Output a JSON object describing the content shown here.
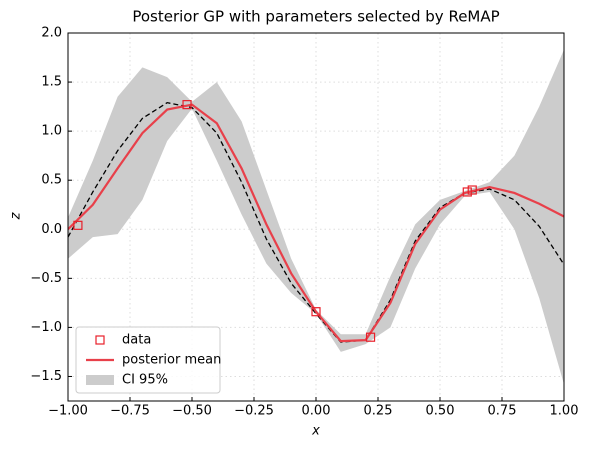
{
  "chart_data": {
    "type": "line",
    "title": "Posterior GP with parameters selected by ReMAP",
    "xlabel": "x",
    "ylabel": "z",
    "x": [
      -1.0,
      -0.9,
      -0.8,
      -0.7,
      -0.6,
      -0.5,
      -0.4,
      -0.3,
      -0.2,
      -0.1,
      0.0,
      0.1,
      0.2,
      0.3,
      0.4,
      0.5,
      0.6,
      0.7,
      0.8,
      0.9,
      1.0
    ],
    "series": [
      {
        "name": "CI 95%",
        "type": "area",
        "color": "#cccccc",
        "upper": [
          0.12,
          0.7,
          1.35,
          1.65,
          1.55,
          1.3,
          1.5,
          1.1,
          0.4,
          -0.3,
          -0.82,
          -1.07,
          -1.07,
          -0.48,
          0.05,
          0.3,
          0.39,
          0.48,
          0.75,
          1.25,
          1.83
        ],
        "lower": [
          -0.3,
          -0.08,
          -0.05,
          0.3,
          0.9,
          1.23,
          0.7,
          0.15,
          -0.35,
          -0.65,
          -0.86,
          -1.25,
          -1.17,
          -1.0,
          -0.4,
          0.05,
          0.34,
          0.38,
          0.0,
          -0.7,
          -1.58
        ]
      },
      {
        "type": "line",
        "color": "#000000",
        "dash": true,
        "values": [
          -0.08,
          0.38,
          0.8,
          1.13,
          1.29,
          1.24,
          0.98,
          0.48,
          -0.1,
          -0.55,
          -0.86,
          -1.15,
          -1.13,
          -0.72,
          -0.12,
          0.22,
          0.37,
          0.41,
          0.3,
          0.03,
          -0.36
        ]
      },
      {
        "name": "posterior mean",
        "type": "line",
        "color": "#e8404a",
        "values": [
          0.0,
          0.25,
          0.62,
          0.98,
          1.22,
          1.27,
          1.08,
          0.62,
          0.05,
          -0.45,
          -0.84,
          -1.14,
          -1.13,
          -0.75,
          -0.15,
          0.2,
          0.37,
          0.43,
          0.37,
          0.26,
          0.13
        ]
      },
      {
        "name": "data",
        "type": "scatter",
        "color": "#e8202a",
        "x": [
          -0.96,
          -0.52,
          0.0,
          0.22,
          0.61,
          0.63
        ],
        "values": [
          0.04,
          1.27,
          -0.84,
          -1.1,
          0.38,
          0.4
        ]
      }
    ],
    "legend_order": [
      3,
      2,
      0
    ],
    "xlim": [
      -1,
      1
    ],
    "xticks": [
      {
        "value": -1,
        "label": "−1.00"
      },
      {
        "value": -0.75,
        "label": "−0.75"
      },
      {
        "value": -0.5,
        "label": "−0.50"
      },
      {
        "value": -0.25,
        "label": "−0.25"
      },
      {
        "value": 0,
        "label": "0.00"
      },
      {
        "value": 0.25,
        "label": "0.25"
      },
      {
        "value": 0.5,
        "label": "0.50"
      },
      {
        "value": 0.75,
        "label": "0.75"
      },
      {
        "value": 1,
        "label": "1.00"
      }
    ],
    "ylim": [
      -1.75,
      2
    ],
    "yticks": [
      {
        "value": -1.5,
        "label": "−1.5"
      },
      {
        "value": -1,
        "label": "−1.0"
      },
      {
        "value": -0.5,
        "label": "−0.5"
      },
      {
        "value": 0,
        "label": "0.0"
      },
      {
        "value": 0.5,
        "label": "0.5"
      },
      {
        "value": 1,
        "label": "1.0"
      },
      {
        "value": 1.5,
        "label": "1.5"
      },
      {
        "value": 2,
        "label": "2.0"
      }
    ],
    "grid": true,
    "legend": "lower left"
  }
}
